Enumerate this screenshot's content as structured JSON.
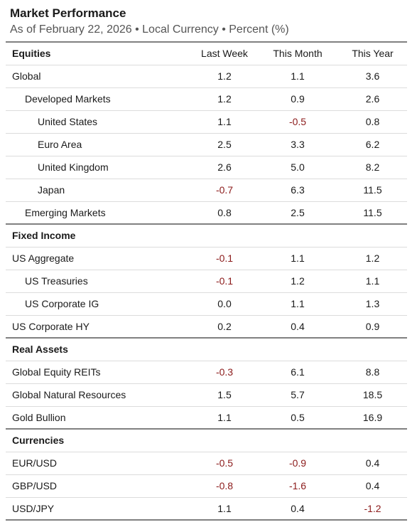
{
  "header": {
    "title": "Market Performance",
    "subtitle": "As of February 22, 2026 • Local Currency • Percent (%)"
  },
  "columns": [
    "Last Week",
    "This Month",
    "This Year"
  ],
  "sections": [
    {
      "name": "Equities",
      "rows": [
        {
          "label": "Global",
          "level": 0,
          "last_week": "1.2",
          "this_month": "1.1",
          "this_year": "3.6"
        },
        {
          "label": "Developed Markets",
          "level": 1,
          "last_week": "1.2",
          "this_month": "0.9",
          "this_year": "2.6"
        },
        {
          "label": "United States",
          "level": 2,
          "last_week": "1.1",
          "this_month": "-0.5",
          "this_year": "0.8"
        },
        {
          "label": "Euro Area",
          "level": 2,
          "last_week": "2.5",
          "this_month": "3.3",
          "this_year": "6.2"
        },
        {
          "label": "United Kingdom",
          "level": 2,
          "last_week": "2.6",
          "this_month": "5.0",
          "this_year": "8.2"
        },
        {
          "label": "Japan",
          "level": 2,
          "last_week": "-0.7",
          "this_month": "6.3",
          "this_year": "11.5"
        },
        {
          "label": "Emerging Markets",
          "level": 1,
          "last_week": "0.8",
          "this_month": "2.5",
          "this_year": "11.5"
        }
      ]
    },
    {
      "name": "Fixed Income",
      "rows": [
        {
          "label": "US Aggregate",
          "level": 0,
          "last_week": "-0.1",
          "this_month": "1.1",
          "this_year": "1.2"
        },
        {
          "label": "US Treasuries",
          "level": 1,
          "last_week": "-0.1",
          "this_month": "1.2",
          "this_year": "1.1"
        },
        {
          "label": "US Corporate IG",
          "level": 1,
          "last_week": "0.0",
          "this_month": "1.1",
          "this_year": "1.3"
        },
        {
          "label": "US Corporate HY",
          "level": 0,
          "last_week": "0.2",
          "this_month": "0.4",
          "this_year": "0.9"
        }
      ]
    },
    {
      "name": "Real Assets",
      "rows": [
        {
          "label": "Global Equity REITs",
          "level": 0,
          "last_week": "-0.3",
          "this_month": "6.1",
          "this_year": "8.8"
        },
        {
          "label": "Global Natural Resources",
          "level": 0,
          "last_week": "1.5",
          "this_month": "5.7",
          "this_year": "18.5"
        },
        {
          "label": "Gold Bullion",
          "level": 0,
          "last_week": "1.1",
          "this_month": "0.5",
          "this_year": "16.9"
        }
      ]
    },
    {
      "name": "Currencies",
      "rows": [
        {
          "label": "EUR/USD",
          "level": 0,
          "last_week": "-0.5",
          "this_month": "-0.9",
          "this_year": "0.4"
        },
        {
          "label": "GBP/USD",
          "level": 0,
          "last_week": "-0.8",
          "this_month": "-1.6",
          "this_year": "0.4"
        },
        {
          "label": "USD/JPY",
          "level": 0,
          "last_week": "1.1",
          "this_month": "0.4",
          "this_year": "-1.2"
        }
      ]
    }
  ],
  "colors": {
    "negative": "#8b1a1a",
    "rule": "#808080",
    "divider": "#dcdcdc"
  }
}
